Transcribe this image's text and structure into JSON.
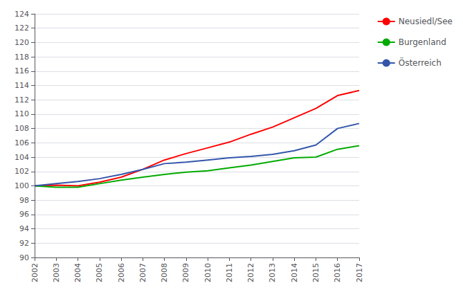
{
  "chart_data": {
    "type": "line",
    "x": [
      2002,
      2003,
      2004,
      2005,
      2006,
      2007,
      2008,
      2009,
      2010,
      2011,
      2012,
      2013,
      2014,
      2015,
      2016,
      2017
    ],
    "series": [
      {
        "name": "Neusiedl/See",
        "color": "#ff0000",
        "values": [
          100.0,
          100.1,
          100.0,
          100.5,
          101.2,
          102.3,
          103.6,
          104.5,
          105.3,
          106.1,
          107.2,
          108.2,
          109.5,
          110.8,
          112.6,
          113.3
        ]
      },
      {
        "name": "Burgenland",
        "color": "#00aa00",
        "values": [
          100.0,
          99.8,
          99.8,
          100.3,
          100.8,
          101.2,
          101.6,
          101.9,
          102.1,
          102.5,
          102.9,
          103.4,
          103.9,
          104.0,
          105.1,
          105.6
        ]
      },
      {
        "name": "Österreich",
        "color": "#3355aa",
        "values": [
          100.0,
          100.3,
          100.6,
          101.0,
          101.6,
          102.3,
          103.1,
          103.3,
          103.6,
          103.9,
          104.1,
          104.4,
          104.9,
          105.7,
          108.0,
          108.7
        ]
      }
    ],
    "xlim": [
      2002,
      2017
    ],
    "xticks": [
      2002,
      2003,
      2004,
      2005,
      2006,
      2007,
      2008,
      2009,
      2010,
      2011,
      2012,
      2013,
      2014,
      2015,
      2016,
      2017
    ],
    "ylim": [
      90,
      124
    ],
    "yticks": [
      90,
      92,
      94,
      96,
      98,
      100,
      102,
      104,
      106,
      108,
      110,
      112,
      114,
      116,
      118,
      120,
      122,
      124
    ],
    "grid": true,
    "legend": "right"
  }
}
